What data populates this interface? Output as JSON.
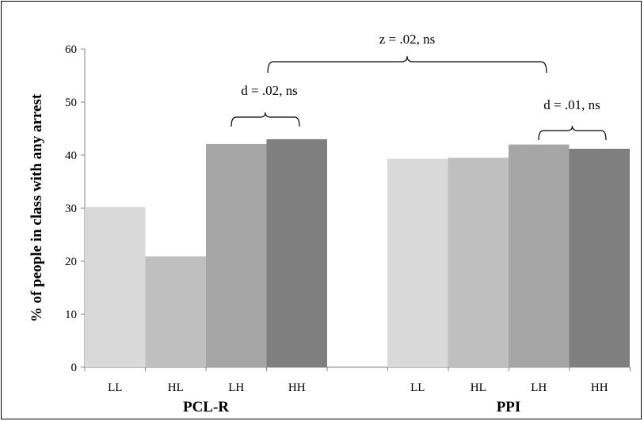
{
  "chart_data": {
    "type": "bar",
    "ylabel": "% of people in class with any arrest",
    "ylim": [
      0,
      60
    ],
    "yticks": [
      0,
      10,
      20,
      30,
      40,
      50,
      60
    ],
    "grid": false,
    "groups": [
      {
        "name": "PCL-R",
        "categories": [
          "LL",
          "HL",
          "LH",
          "HH"
        ],
        "values": [
          30.2,
          20.9,
          42.1,
          43.0
        ],
        "colors": [
          "#d9d9d9",
          "#bfbfbf",
          "#a6a6a6",
          "#7f7f7f"
        ]
      },
      {
        "name": "PPI",
        "categories": [
          "LL",
          "HL",
          "LH",
          "HH"
        ],
        "values": [
          39.3,
          39.5,
          42.0,
          41.2
        ],
        "colors": [
          "#d9d9d9",
          "#bfbfbf",
          "#a6a6a6",
          "#7f7f7f"
        ]
      }
    ],
    "annotations": [
      {
        "text": "d = .02, ns",
        "spans": {
          "group": 0,
          "from": 2,
          "to": 3
        }
      },
      {
        "text": "d = .01, ns",
        "spans": {
          "group": 1,
          "from": 2,
          "to": 3
        }
      },
      {
        "text": "z = .02, ns",
        "spans": {
          "group": "both",
          "from": 3,
          "to": 2
        }
      }
    ]
  }
}
